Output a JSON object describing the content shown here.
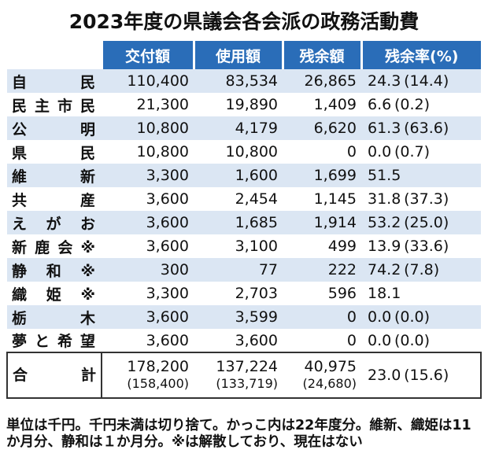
{
  "title": "2023年度の県議会各会派の政務活動費",
  "headers": [
    "交付額",
    "使用額",
    "残余額",
    "残余率(%)"
  ],
  "rows": [
    {
      "name": "自　民",
      "grant": "110,400",
      "used": "83,534",
      "remain": "26,865",
      "rate": "24.3",
      "prev": "(14.4)"
    },
    {
      "name": "民主市民",
      "grant": "21,300",
      "used": "19,890",
      "remain": "1,409",
      "rate": "6.6",
      "prev": "(0.2)"
    },
    {
      "name": "公　明",
      "grant": "10,800",
      "used": "4,179",
      "remain": "6,620",
      "rate": "61.3",
      "prev": "(63.6)"
    },
    {
      "name": "県　民",
      "grant": "10,800",
      "used": "10,800",
      "remain": "0",
      "rate": "0.0",
      "prev": "(0.7)"
    },
    {
      "name": "維　新",
      "grant": "3,300",
      "used": "1,600",
      "remain": "1,699",
      "rate": "51.5",
      "prev": ""
    },
    {
      "name": "共　産",
      "grant": "3,600",
      "used": "2,454",
      "remain": "1,145",
      "rate": "31.8",
      "prev": "(37.3)"
    },
    {
      "name": "えがお",
      "grant": "3,600",
      "used": "1,685",
      "remain": "1,914",
      "rate": "53.2",
      "prev": "(25.0)"
    },
    {
      "name": "新鹿会※",
      "grant": "3,600",
      "used": "3,100",
      "remain": "499",
      "rate": "13.9",
      "prev": "(33.6)"
    },
    {
      "name": "静和※",
      "grant": "300",
      "used": "77",
      "remain": "222",
      "rate": "74.2",
      "prev": "(7.8)"
    },
    {
      "name": "織姫※",
      "grant": "3,300",
      "used": "2,703",
      "remain": "596",
      "rate": "18.1",
      "prev": ""
    },
    {
      "name": "栃　木",
      "grant": "3,600",
      "used": "3,599",
      "remain": "0",
      "rate": "0.0",
      "prev": "(0.0)"
    },
    {
      "name": "夢と希望",
      "grant": "3,600",
      "used": "3,600",
      "remain": "0",
      "rate": "0.0",
      "prev": "(0.0)"
    }
  ],
  "total": {
    "name": "合　計",
    "grant": "178,200",
    "grant_prev": "(158,400)",
    "used": "137,224",
    "used_prev": "(133,719)",
    "remain": "40,975",
    "remain_prev": "(24,680)",
    "rate": "23.0",
    "rate_prev": "(15.6)"
  },
  "note": "単位は千円。千円未満は切り捨て。かっこ内は22年度分。維新、織姫は11か月分、静和は１か月分。※は解散しており、現在はない"
}
